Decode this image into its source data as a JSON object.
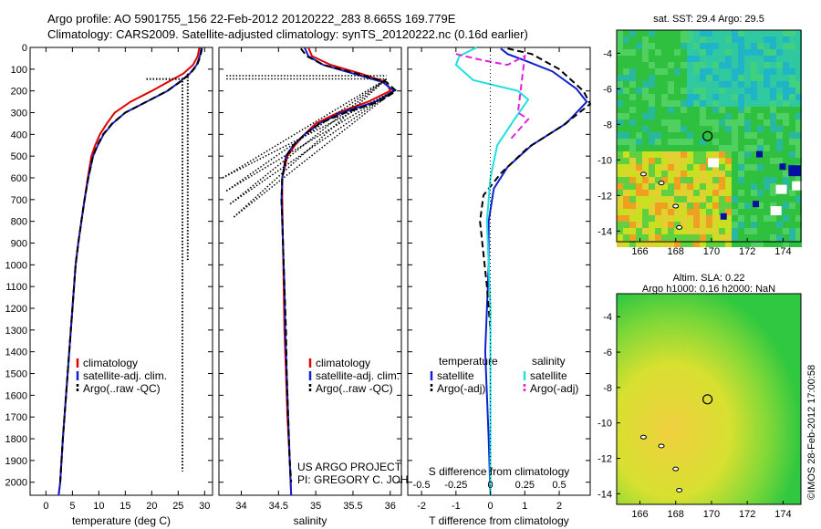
{
  "header": {
    "line1": "Argo profile: AO 5901755_156 22-Feb-2012 20120222_283 8.665S 169.779E",
    "line2": "Climatology: CARS2009. Satellite-adjusted climatology: synTS_20120222.nc (0.16d earlier)"
  },
  "colors": {
    "climatology": "#e00000",
    "satellite": "#1020d0",
    "argo": "#000000",
    "sal_satellite": "#20e0e0",
    "sal_argo": "#e020e0"
  },
  "chart_data": [
    {
      "type": "line",
      "name": "temperature-profile",
      "xlabel": "temperature (deg C)",
      "ylabel": "",
      "xlim": [
        -3,
        31.5
      ],
      "ylim": [
        2060,
        0
      ],
      "xticks": [
        0,
        5,
        10,
        15,
        20,
        25,
        30
      ],
      "yticks": [
        0,
        100,
        200,
        300,
        400,
        500,
        600,
        700,
        800,
        900,
        1000,
        1100,
        1200,
        1300,
        1400,
        1500,
        1600,
        1700,
        1800,
        1900,
        2000
      ],
      "series": [
        {
          "name": "climatology",
          "color_key": "climatology",
          "points": [
            [
              29.0,
              0
            ],
            [
              28.7,
              40
            ],
            [
              27.8,
              80
            ],
            [
              26.0,
              120
            ],
            [
              23.0,
              160
            ],
            [
              20.0,
              200
            ],
            [
              16.0,
              250
            ],
            [
              13.0,
              300
            ],
            [
              11.5,
              350
            ],
            [
              10.2,
              400
            ],
            [
              9.3,
              450
            ],
            [
              8.6,
              500
            ],
            [
              7.9,
              600
            ],
            [
              7.3,
              700
            ],
            [
              6.7,
              800
            ],
            [
              6.1,
              900
            ],
            [
              5.6,
              1000
            ],
            [
              5.0,
              1200
            ],
            [
              4.4,
              1400
            ],
            [
              3.8,
              1600
            ],
            [
              3.2,
              1800
            ],
            [
              2.7,
              2000
            ],
            [
              2.4,
              2060
            ]
          ]
        },
        {
          "name": "satellite-adj. clim.",
          "color_key": "satellite",
          "points": [
            [
              29.4,
              0
            ],
            [
              29.1,
              40
            ],
            [
              28.5,
              80
            ],
            [
              27.2,
              120
            ],
            [
              25.2,
              160
            ],
            [
              23.0,
              200
            ],
            [
              19.0,
              250
            ],
            [
              15.0,
              300
            ],
            [
              12.6,
              350
            ],
            [
              10.9,
              400
            ],
            [
              9.8,
              450
            ],
            [
              8.9,
              500
            ],
            [
              8.0,
              600
            ],
            [
              7.3,
              700
            ],
            [
              6.7,
              800
            ],
            [
              6.1,
              900
            ],
            [
              5.6,
              1000
            ],
            [
              5.0,
              1200
            ],
            [
              4.4,
              1400
            ],
            [
              3.8,
              1600
            ],
            [
              3.2,
              1800
            ],
            [
              2.7,
              2000
            ],
            [
              2.4,
              2060
            ]
          ]
        },
        {
          "name": "Argo(..raw -QC)",
          "color_key": "argo",
          "dashed": true,
          "points": [
            [
              29.5,
              5
            ],
            [
              29.2,
              40
            ],
            [
              28.6,
              80
            ],
            [
              27.3,
              120
            ],
            [
              25.3,
              160
            ],
            [
              22.9,
              200
            ],
            [
              19.0,
              250
            ],
            [
              15.0,
              300
            ],
            [
              12.5,
              350
            ],
            [
              10.8,
              400
            ],
            [
              9.7,
              450
            ],
            [
              8.9,
              500
            ],
            [
              8.0,
              600
            ],
            [
              7.3,
              700
            ],
            [
              6.7,
              800
            ],
            [
              6.1,
              900
            ],
            [
              5.6,
              1000
            ],
            [
              5.0,
              1200
            ],
            [
              4.4,
              1400
            ],
            [
              3.8,
              1600
            ],
            [
              3.2,
              1800
            ],
            [
              2.7,
              2000
            ]
          ]
        },
        {
          "name": "argo-qc-flags",
          "color_key": "argo",
          "dotted": true,
          "points": [
            [
              19,
              145
            ],
            [
              26,
              145
            ]
          ]
        },
        {
          "name": "argo-qc-flags-vertical",
          "color_key": "argo",
          "dotted": true,
          "points": [
            [
              25.8,
              140
            ],
            [
              25.8,
              1950
            ]
          ]
        },
        {
          "name": "argo-qc-flags-vertical-2",
          "color_key": "argo",
          "dotted": true,
          "points": [
            [
              26.8,
              120
            ],
            [
              26.8,
              980
            ]
          ]
        }
      ],
      "legend": [
        "climatology",
        "satellite-adj. clim.",
        "Argo(..raw -QC)"
      ]
    },
    {
      "type": "line",
      "name": "salinity-profile",
      "xlabel": "salinity",
      "xlim": [
        33.7,
        36.15
      ],
      "ylim": [
        2060,
        0
      ],
      "xticks": [
        34,
        34.5,
        35,
        35.5,
        36
      ],
      "series": [
        {
          "name": "climatology",
          "color_key": "climatology",
          "points": [
            [
              34.9,
              0
            ],
            [
              34.95,
              40
            ],
            [
              35.2,
              80
            ],
            [
              35.6,
              120
            ],
            [
              35.95,
              160
            ],
            [
              36.0,
              200
            ],
            [
              35.7,
              250
            ],
            [
              35.3,
              300
            ],
            [
              35.0,
              350
            ],
            [
              34.85,
              400
            ],
            [
              34.72,
              450
            ],
            [
              34.62,
              500
            ],
            [
              34.55,
              600
            ],
            [
              34.55,
              700
            ],
            [
              34.56,
              900
            ],
            [
              34.57,
              1100
            ],
            [
              34.58,
              1300
            ],
            [
              34.6,
              1500
            ],
            [
              34.62,
              1700
            ],
            [
              34.65,
              1900
            ],
            [
              34.67,
              2060
            ]
          ]
        },
        {
          "name": "satellite-adj. clim.",
          "color_key": "satellite",
          "points": [
            [
              34.85,
              0
            ],
            [
              34.9,
              40
            ],
            [
              35.1,
              80
            ],
            [
              35.5,
              120
            ],
            [
              35.9,
              160
            ],
            [
              36.05,
              200
            ],
            [
              35.8,
              250
            ],
            [
              35.35,
              300
            ],
            [
              35.05,
              350
            ],
            [
              34.85,
              400
            ],
            [
              34.7,
              450
            ],
            [
              34.6,
              500
            ],
            [
              34.55,
              600
            ],
            [
              34.54,
              700
            ],
            [
              34.56,
              900
            ],
            [
              34.58,
              1100
            ],
            [
              34.59,
              1300
            ],
            [
              34.61,
              1500
            ],
            [
              34.63,
              1700
            ],
            [
              34.65,
              1900
            ],
            [
              34.67,
              2060
            ]
          ]
        },
        {
          "name": "Argo(..raw -QC)",
          "color_key": "argo",
          "dashed": true,
          "points": [
            [
              34.8,
              5
            ],
            [
              34.88,
              40
            ],
            [
              35.1,
              80
            ],
            [
              35.55,
              120
            ],
            [
              35.95,
              160
            ],
            [
              36.08,
              200
            ],
            [
              35.85,
              250
            ],
            [
              35.4,
              300
            ],
            [
              35.05,
              350
            ],
            [
              34.85,
              400
            ],
            [
              34.7,
              450
            ],
            [
              34.6,
              500
            ],
            [
              34.55,
              600
            ],
            [
              34.54,
              700
            ],
            [
              34.56,
              900
            ],
            [
              34.58,
              1100
            ],
            [
              34.6,
              1300
            ],
            [
              34.61,
              1500
            ],
            [
              34.63,
              1700
            ],
            [
              34.65,
              1900
            ],
            [
              34.67,
              2000
            ]
          ]
        }
      ],
      "legend": [
        "climatology",
        "satellite-adj. clim.",
        "Argo(..raw -QC)"
      ],
      "annotations": [
        "US ARGO PROJECT",
        "PI: GREGORY C. JOHNSON"
      ]
    },
    {
      "type": "line",
      "name": "difference-profile",
      "xlabel": "T difference from climatology",
      "x2label": "S difference from climatology",
      "xlim": [
        -2.4,
        2.9
      ],
      "ylim": [
        2060,
        0
      ],
      "xticks_T": [
        -2,
        -1,
        0,
        1,
        2
      ],
      "xticks_S": [
        "-0.5",
        "-0.25",
        "0",
        "0.25",
        "0.5"
      ],
      "legend_titles": [
        "temperature",
        "salinity"
      ],
      "legend": [
        "satellite",
        "Argo(-adj)",
        "satellite",
        "Argo(-adj)"
      ],
      "series": [
        {
          "name": "temperature satellite",
          "color_key": "satellite",
          "points": [
            [
              0.3,
              5
            ],
            [
              0.5,
              30
            ],
            [
              1.0,
              60
            ],
            [
              1.8,
              110
            ],
            [
              2.5,
              190
            ],
            [
              2.8,
              250
            ],
            [
              2.2,
              350
            ],
            [
              1.2,
              450
            ],
            [
              0.5,
              550
            ],
            [
              0.1,
              650
            ],
            [
              -0.05,
              800
            ],
            [
              -0.05,
              1000
            ],
            [
              -0.1,
              1200
            ],
            [
              -0.15,
              1400
            ],
            [
              -0.1,
              1600
            ],
            [
              -0.05,
              1800
            ],
            [
              0,
              2060
            ]
          ]
        },
        {
          "name": "temperature Argo(-adj)",
          "color_key": "argo",
          "dashed": true,
          "points": [
            [
              0.5,
              5
            ],
            [
              1.2,
              30
            ],
            [
              2.0,
              100
            ],
            [
              2.7,
              200
            ],
            [
              2.9,
              260
            ],
            [
              2.1,
              360
            ],
            [
              1.1,
              460
            ],
            [
              0.3,
              580
            ],
            [
              -0.2,
              680
            ],
            [
              -0.3,
              800
            ],
            [
              -0.2,
              950
            ],
            [
              -0.1,
              1100
            ],
            [
              0,
              1300
            ]
          ]
        },
        {
          "name": "salinity satellite",
          "color_key": "sal_satellite",
          "points": [
            [
              -0.4,
              0
            ],
            [
              -0.9,
              40
            ],
            [
              -1.0,
              80
            ],
            [
              -0.5,
              150
            ],
            [
              0.8,
              200
            ],
            [
              1.1,
              240
            ],
            [
              0.7,
              330
            ],
            [
              0.2,
              450
            ],
            [
              0.0,
              600
            ],
            [
              -0.1,
              800
            ],
            [
              -0.05,
              1000
            ],
            [
              0.0,
              1200
            ],
            [
              0.0,
              1500
            ],
            [
              0.0,
              2060
            ]
          ]
        },
        {
          "name": "salinity Argo(-adj)",
          "color_key": "sal_argo",
          "dashed": true,
          "points": [
            [
              -1.0,
              30
            ],
            [
              -0.2,
              60
            ],
            [
              0.5,
              80
            ],
            [
              1.0,
              40
            ],
            [
              0.8,
              300
            ],
            [
              1.1,
              330
            ],
            [
              0.6,
              420
            ]
          ]
        }
      ]
    },
    {
      "type": "heatmap",
      "name": "sst-map",
      "title": "sat. SST: 29.4 Argo: 29.5",
      "xlim": [
        164.7,
        175.0
      ],
      "ylim": [
        -14.6,
        -2.7
      ],
      "xticks": [
        166,
        168,
        170,
        172,
        174
      ],
      "yticks": [
        -4,
        -6,
        -8,
        -10,
        -12,
        -14
      ],
      "argo_position": [
        169.779,
        -8.665
      ]
    },
    {
      "type": "heatmap",
      "name": "sla-map",
      "title": "Altim. SLA: 0.22",
      "subtitle": "Argo h1000: 0.16 h2000: NaN",
      "xlim": [
        164.7,
        175.0
      ],
      "ylim": [
        -14.6,
        -2.7
      ],
      "xticks": [
        166,
        168,
        170,
        172,
        174
      ],
      "yticks": [
        -4,
        -6,
        -8,
        -10,
        -12,
        -14
      ],
      "argo_position": [
        169.779,
        -8.665
      ]
    }
  ],
  "footer": {
    "stamp": "©IMOS 28-Feb-2012 17:00:58"
  }
}
